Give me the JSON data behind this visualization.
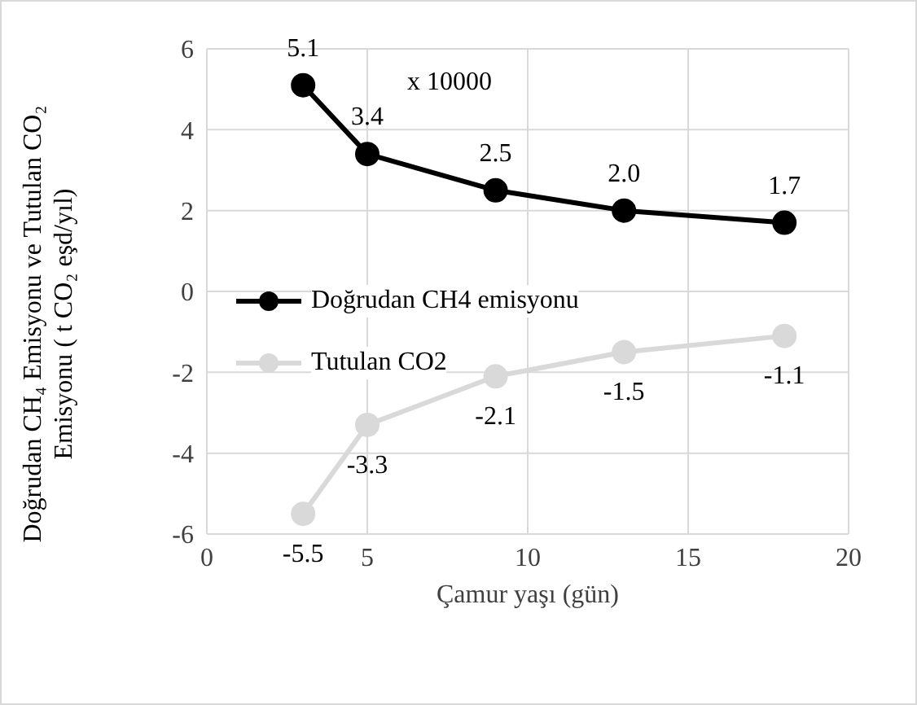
{
  "chart_data": {
    "type": "line",
    "xlabel": "Çamur yaşı (gün)",
    "ylabel": "Doğrudan CH₄ Emisyonu ve Tutulan CO₂ Emisyonu ( t CO₂ eşd/yıl)",
    "annotations": [
      "x 10000"
    ],
    "x": [
      3,
      5,
      9,
      13,
      18
    ],
    "series": [
      {
        "name": "Doğrudan CH4 emisyonu",
        "color": "#000000",
        "values": [
          5.1,
          3.4,
          2.5,
          2.0,
          1.7
        ],
        "value_labels": [
          "5.1",
          "3.4",
          "2.5",
          "2.0",
          "1.7"
        ]
      },
      {
        "name": "Tutulan CO2",
        "color": "#d9d9d9",
        "values": [
          -5.5,
          -3.3,
          -2.1,
          -1.5,
          -1.1
        ],
        "value_labels": [
          "-5.5",
          "-3.3",
          "-2.1",
          "-1.5",
          "-1.1"
        ]
      }
    ],
    "xlim": [
      0,
      20
    ],
    "xticks": [
      0,
      5,
      10,
      15,
      20
    ],
    "ylim": [
      -6,
      6
    ],
    "yticks": [
      -6,
      -4,
      -2,
      0,
      2,
      4,
      6
    ],
    "grid": true,
    "legend": "left",
    "marker": "circle",
    "line_style": "solid"
  }
}
